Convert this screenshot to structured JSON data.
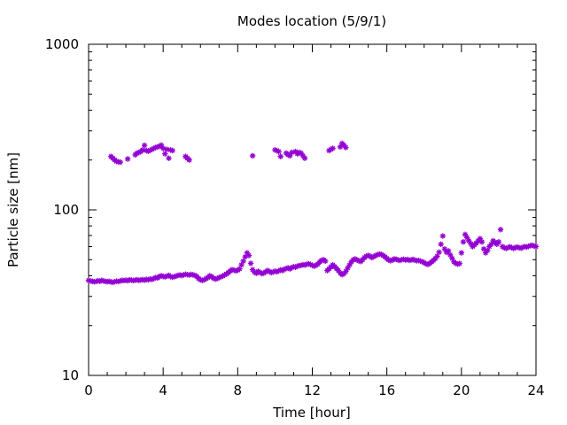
{
  "chart_data": {
    "type": "scatter",
    "title": "Modes location (5/9/1)",
    "xlabel": "Time [hour]",
    "ylabel": "Particle size [nm]",
    "xlim": [
      0,
      24
    ],
    "ylim": [
      10,
      1000
    ],
    "yscale": "log",
    "x_ticks": [
      0,
      4,
      8,
      12,
      16,
      20,
      24
    ],
    "x_tick_labels": [
      "0",
      "4",
      "8",
      "12",
      "16",
      "20",
      "24"
    ],
    "y_ticks": [
      10,
      100,
      1000
    ],
    "y_tick_labels": [
      "10",
      "100",
      "1000"
    ],
    "grid": false,
    "marker": "asterisk",
    "marker_color": "#9400d3",
    "series": [
      {
        "points": [
          [
            0.0,
            37.5
          ],
          [
            0.1,
            37.2
          ],
          [
            0.2,
            37.0
          ],
          [
            0.3,
            36.8
          ],
          [
            0.4,
            36.9
          ],
          [
            0.5,
            37.3
          ],
          [
            0.6,
            37.0
          ],
          [
            0.7,
            37.5
          ],
          [
            0.8,
            37.2
          ],
          [
            0.9,
            37.0
          ],
          [
            1.0,
            36.8
          ],
          [
            1.1,
            37.0
          ],
          [
            1.2,
            36.7
          ],
          [
            1.3,
            36.5
          ],
          [
            1.4,
            36.8
          ],
          [
            1.5,
            37.1
          ],
          [
            1.6,
            36.9
          ],
          [
            1.7,
            37.2
          ],
          [
            1.8,
            37.5
          ],
          [
            1.9,
            37.4
          ],
          [
            2.0,
            37.6
          ],
          [
            2.1,
            37.3
          ],
          [
            2.2,
            37.8
          ],
          [
            2.3,
            37.6
          ],
          [
            2.4,
            37.4
          ],
          [
            2.5,
            37.6
          ],
          [
            2.6,
            37.8
          ],
          [
            2.7,
            37.5
          ],
          [
            2.8,
            37.7
          ],
          [
            2.9,
            37.9
          ],
          [
            3.0,
            37.6
          ],
          [
            3.1,
            38.0
          ],
          [
            3.2,
            37.8
          ],
          [
            3.3,
            38.2
          ],
          [
            3.4,
            38.0
          ],
          [
            3.5,
            38.5
          ],
          [
            3.6,
            39.0
          ],
          [
            3.7,
            38.8
          ],
          [
            3.8,
            39.6
          ],
          [
            3.9,
            40.0
          ],
          [
            4.0,
            39.6
          ],
          [
            4.1,
            39.4
          ],
          [
            4.2,
            39.8
          ],
          [
            4.3,
            40.2
          ],
          [
            4.4,
            39.5
          ],
          [
            4.5,
            39.2
          ],
          [
            4.6,
            39.5
          ],
          [
            4.7,
            39.8
          ],
          [
            4.8,
            40.2
          ],
          [
            4.9,
            40.4
          ],
          [
            5.0,
            40.1
          ],
          [
            5.1,
            40.5
          ],
          [
            5.2,
            40.8
          ],
          [
            5.3,
            40.6
          ],
          [
            5.4,
            40.4
          ],
          [
            5.5,
            40.7
          ],
          [
            5.6,
            40.5
          ],
          [
            5.7,
            40.2
          ],
          [
            5.8,
            39.6
          ],
          [
            5.9,
            38.5
          ],
          [
            6.0,
            37.8
          ],
          [
            6.1,
            37.5
          ],
          [
            6.2,
            37.8
          ],
          [
            6.3,
            38.4
          ],
          [
            6.4,
            39.0
          ],
          [
            6.5,
            40.0
          ],
          [
            6.6,
            39.5
          ],
          [
            6.7,
            38.6
          ],
          [
            6.8,
            38.2
          ],
          [
            6.9,
            38.5
          ],
          [
            7.0,
            39.0
          ],
          [
            7.1,
            39.4
          ],
          [
            7.2,
            39.8
          ],
          [
            7.3,
            40.5
          ],
          [
            7.4,
            41.0
          ],
          [
            7.5,
            41.8
          ],
          [
            7.6,
            42.8
          ],
          [
            7.7,
            43.5
          ],
          [
            7.8,
            43.2
          ],
          [
            7.9,
            42.8
          ],
          [
            8.0,
            43.2
          ],
          [
            8.1,
            44.0
          ],
          [
            8.2,
            46.5
          ],
          [
            8.3,
            49.0
          ],
          [
            8.4,
            52.0
          ],
          [
            8.5,
            55.0
          ],
          [
            8.6,
            53.0
          ],
          [
            8.7,
            47.5
          ],
          [
            8.8,
            43.5
          ],
          [
            8.9,
            42.0
          ],
          [
            9.0,
            41.4
          ],
          [
            9.1,
            42.5
          ],
          [
            9.2,
            41.8
          ],
          [
            9.3,
            41.2
          ],
          [
            9.4,
            41.5
          ],
          [
            9.5,
            42.2
          ],
          [
            9.6,
            43.0
          ],
          [
            9.7,
            42.4
          ],
          [
            9.8,
            41.8
          ],
          [
            9.9,
            42.1
          ],
          [
            10.0,
            42.6
          ],
          [
            10.1,
            42.3
          ],
          [
            10.2,
            42.8
          ],
          [
            10.3,
            43.4
          ],
          [
            10.4,
            43.0
          ],
          [
            10.5,
            43.8
          ],
          [
            10.6,
            44.2
          ],
          [
            10.7,
            44.6
          ],
          [
            10.8,
            44.0
          ],
          [
            10.9,
            44.8
          ],
          [
            11.0,
            45.3
          ],
          [
            11.1,
            45.0
          ],
          [
            11.2,
            45.7
          ],
          [
            11.3,
            46.0
          ],
          [
            11.4,
            46.2
          ],
          [
            11.5,
            46.6
          ],
          [
            11.6,
            46.4
          ],
          [
            11.7,
            46.9
          ],
          [
            11.8,
            47.2
          ],
          [
            11.9,
            46.8
          ],
          [
            12.0,
            46.2
          ],
          [
            12.1,
            45.7
          ],
          [
            12.2,
            46.3
          ],
          [
            12.3,
            47.0
          ],
          [
            12.4,
            48.5
          ],
          [
            12.5,
            49.5
          ],
          [
            12.6,
            50.0
          ],
          [
            12.7,
            49.0
          ],
          [
            12.8,
            43.0
          ],
          [
            12.9,
            44.0
          ],
          [
            13.0,
            45.2
          ],
          [
            13.1,
            46.5
          ],
          [
            13.2,
            45.4
          ],
          [
            13.3,
            44.2
          ],
          [
            13.4,
            43.0
          ],
          [
            13.5,
            41.5
          ],
          [
            13.6,
            40.6
          ],
          [
            13.7,
            41.2
          ],
          [
            13.8,
            42.5
          ],
          [
            13.9,
            44.5
          ],
          [
            14.0,
            46.5
          ],
          [
            14.1,
            48.5
          ],
          [
            14.2,
            50.0
          ],
          [
            14.3,
            50.5
          ],
          [
            14.4,
            49.8
          ],
          [
            14.5,
            49.2
          ],
          [
            14.6,
            48.8
          ],
          [
            14.7,
            50.0
          ],
          [
            14.8,
            51.5
          ],
          [
            14.9,
            52.5
          ],
          [
            15.0,
            53.0
          ],
          [
            15.1,
            52.5
          ],
          [
            15.2,
            51.5
          ],
          [
            15.3,
            52.2
          ],
          [
            15.4,
            53.0
          ],
          [
            15.5,
            53.6
          ],
          [
            15.6,
            54.0
          ],
          [
            15.7,
            53.8
          ],
          [
            15.8,
            53.0
          ],
          [
            15.9,
            52.0
          ],
          [
            16.0,
            50.8
          ],
          [
            16.1,
            49.8
          ],
          [
            16.2,
            49.3
          ],
          [
            16.3,
            49.8
          ],
          [
            16.4,
            50.5
          ],
          [
            16.5,
            50.3
          ],
          [
            16.6,
            49.8
          ],
          [
            16.7,
            49.5
          ],
          [
            16.8,
            50.0
          ],
          [
            16.9,
            50.3
          ],
          [
            17.0,
            49.8
          ],
          [
            17.1,
            50.1
          ],
          [
            17.2,
            49.6
          ],
          [
            17.3,
            49.8
          ],
          [
            17.4,
            50.2
          ],
          [
            17.5,
            49.7
          ],
          [
            17.6,
            49.3
          ],
          [
            17.7,
            49.5
          ],
          [
            17.8,
            49.0
          ],
          [
            17.9,
            48.6
          ],
          [
            18.0,
            48.0
          ],
          [
            18.1,
            47.2
          ],
          [
            18.2,
            46.8
          ],
          [
            18.3,
            47.5
          ],
          [
            18.4,
            48.5
          ],
          [
            18.5,
            49.5
          ],
          [
            18.6,
            50.8
          ],
          [
            18.7,
            52.5
          ],
          [
            18.8,
            55.5
          ],
          [
            18.9,
            62.0
          ],
          [
            19.0,
            69.5
          ],
          [
            19.1,
            58.0
          ],
          [
            19.2,
            55.5
          ],
          [
            19.3,
            56.5
          ],
          [
            19.4,
            53.5
          ],
          [
            19.5,
            51.0
          ],
          [
            19.6,
            48.5
          ],
          [
            19.7,
            47.5
          ],
          [
            19.8,
            47.0
          ],
          [
            19.9,
            47.4
          ],
          [
            20.0,
            55.0
          ],
          [
            20.1,
            64.0
          ],
          [
            20.2,
            71.0
          ],
          [
            20.3,
            68.0
          ],
          [
            20.4,
            65.0
          ],
          [
            20.5,
            62.5
          ],
          [
            20.6,
            60.0
          ],
          [
            20.7,
            61.5
          ],
          [
            20.8,
            63.0
          ],
          [
            20.9,
            65.0
          ],
          [
            21.0,
            67.0
          ],
          [
            21.1,
            64.0
          ],
          [
            21.2,
            58.0
          ],
          [
            21.3,
            55.0
          ],
          [
            21.4,
            57.0
          ],
          [
            21.5,
            60.0
          ],
          [
            21.6,
            62.0
          ],
          [
            21.7,
            65.0
          ],
          [
            21.8,
            63.5
          ],
          [
            21.9,
            62.0
          ],
          [
            22.0,
            64.0
          ],
          [
            22.1,
            76.0
          ],
          [
            22.2,
            60.0
          ],
          [
            22.3,
            59.0
          ],
          [
            22.4,
            58.5
          ],
          [
            22.5,
            59.2
          ],
          [
            22.6,
            59.8
          ],
          [
            22.7,
            59.0
          ],
          [
            22.8,
            58.5
          ],
          [
            22.9,
            59.2
          ],
          [
            23.0,
            59.6
          ],
          [
            23.1,
            59.0
          ],
          [
            23.2,
            58.7
          ],
          [
            23.3,
            59.5
          ],
          [
            23.4,
            60.0
          ],
          [
            23.5,
            59.6
          ],
          [
            23.6,
            60.2
          ],
          [
            23.7,
            60.8
          ],
          [
            23.8,
            61.0
          ],
          [
            23.9,
            60.5
          ],
          [
            24.0,
            60.0
          ],
          [
            1.2,
            210.0
          ],
          [
            1.3,
            205.0
          ],
          [
            1.4,
            200.0
          ],
          [
            1.5,
            196.0
          ],
          [
            1.6,
            195.0
          ],
          [
            1.7,
            194.0
          ],
          [
            2.1,
            203.0
          ],
          [
            2.5,
            215.0
          ],
          [
            2.6,
            220.0
          ],
          [
            2.7,
            222.0
          ],
          [
            2.8,
            225.0
          ],
          [
            2.9,
            230.0
          ],
          [
            3.0,
            245.0
          ],
          [
            3.1,
            228.0
          ],
          [
            3.2,
            226.0
          ],
          [
            3.3,
            229.0
          ],
          [
            3.4,
            232.0
          ],
          [
            3.5,
            235.0
          ],
          [
            3.6,
            238.0
          ],
          [
            3.7,
            240.0
          ],
          [
            3.8,
            242.0
          ],
          [
            3.9,
            246.0
          ],
          [
            4.0,
            235.0
          ],
          [
            4.1,
            218.0
          ],
          [
            4.2,
            232.0
          ],
          [
            4.3,
            205.0
          ],
          [
            4.4,
            230.0
          ],
          [
            4.5,
            228.0
          ],
          [
            5.2,
            210.0
          ],
          [
            5.3,
            205.0
          ],
          [
            5.4,
            200.0
          ],
          [
            8.8,
            212.0
          ],
          [
            10.0,
            230.0
          ],
          [
            10.1,
            228.0
          ],
          [
            10.2,
            225.0
          ],
          [
            10.3,
            210.0
          ],
          [
            10.6,
            220.0
          ],
          [
            10.7,
            215.0
          ],
          [
            10.8,
            212.0
          ],
          [
            10.9,
            222.0
          ],
          [
            11.1,
            225.0
          ],
          [
            11.2,
            218.0
          ],
          [
            11.3,
            222.0
          ],
          [
            11.4,
            220.0
          ],
          [
            11.5,
            212.0
          ],
          [
            11.6,
            205.0
          ],
          [
            12.9,
            228.0
          ],
          [
            13.0,
            232.0
          ],
          [
            13.1,
            235.0
          ],
          [
            13.5,
            240.0
          ],
          [
            13.6,
            252.0
          ],
          [
            13.7,
            245.0
          ],
          [
            13.8,
            238.0
          ]
        ]
      }
    ]
  }
}
